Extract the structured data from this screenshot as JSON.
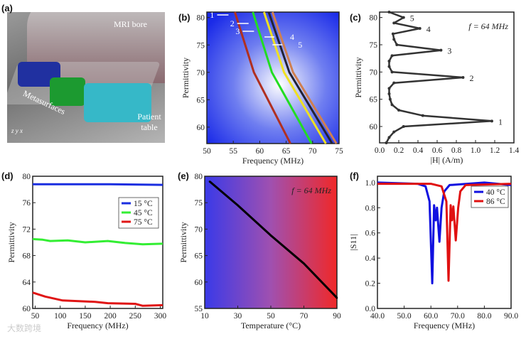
{
  "panels": {
    "a": "(a)",
    "b": "(b)",
    "c": "(c)",
    "d": "(d)",
    "e": "(e)",
    "f": "(f)"
  },
  "scene": {
    "mri_bore": "MRI bore",
    "metasurfaces": "Metasurfaces",
    "patient_table": "Patient table",
    "axes": "z y x"
  },
  "watermark": "大数跨境",
  "chart_data": [
    {
      "id": "b",
      "type": "line",
      "xlabel": "Frequency (MHz)",
      "ylabel": "Permittivity",
      "xlim": [
        50,
        75
      ],
      "ylim": [
        57,
        81
      ],
      "xticks": [
        50,
        55,
        60,
        65,
        70,
        75
      ],
      "yticks": [
        60,
        65,
        70,
        75,
        80
      ],
      "series": [
        {
          "name": "1",
          "color": "#b03020",
          "points": [
            [
              55.3,
              81
            ],
            [
              58.9,
              70
            ],
            [
              65.8,
              57
            ]
          ]
        },
        {
          "name": "2",
          "color": "#22dd22",
          "points": [
            [
              58.7,
              81
            ],
            [
              62.3,
              70
            ],
            [
              69.8,
              57
            ]
          ]
        },
        {
          "name": "3",
          "color": "#f0e020",
          "points": [
            [
              60.8,
              81
            ],
            [
              64.6,
              70
            ],
            [
              72.5,
              57
            ]
          ]
        },
        {
          "name": "4",
          "color": "#222233",
          "points": [
            [
              61.7,
              81
            ],
            [
              65.6,
              70
            ],
            [
              73.7,
              57
            ]
          ]
        },
        {
          "name": "5",
          "color": "#d08050",
          "points": [
            [
              62.4,
              81
            ],
            [
              66.3,
              70
            ],
            [
              74.5,
              57
            ]
          ]
        }
      ]
    },
    {
      "id": "c",
      "type": "line",
      "xlabel": "|H| (A/m)",
      "ylabel": "Permittivity",
      "annotation": "f = 64 MHz",
      "xlim": [
        0,
        1.4
      ],
      "ylim": [
        57,
        81
      ],
      "xticks": [
        0.0,
        0.2,
        0.4,
        0.6,
        0.8,
        1.0,
        1.2,
        1.4
      ],
      "yticks": [
        60,
        65,
        70,
        75,
        80
      ],
      "series": [
        {
          "name": "H",
          "color": "#333333",
          "points": [
            [
              0.07,
              57
            ],
            [
              0.1,
              58
            ],
            [
              0.15,
              59
            ],
            [
              0.25,
              60
            ],
            [
              1.17,
              61
            ],
            [
              0.45,
              62
            ],
            [
              0.2,
              63
            ],
            [
              0.13,
              64
            ],
            [
              0.11,
              65
            ],
            [
              0.1,
              66
            ],
            [
              0.1,
              67
            ],
            [
              0.15,
              68
            ],
            [
              0.87,
              69
            ],
            [
              0.13,
              70
            ],
            [
              0.1,
              71
            ],
            [
              0.1,
              72
            ],
            [
              0.13,
              73
            ],
            [
              0.64,
              74
            ],
            [
              0.18,
              75
            ],
            [
              0.15,
              76
            ],
            [
              0.14,
              77
            ],
            [
              0.42,
              78
            ],
            [
              0.15,
              79
            ],
            [
              0.25,
              80
            ],
            [
              0.1,
              81
            ]
          ]
        }
      ],
      "peak_labels": [
        {
          "text": "1",
          "x": 1.17,
          "y": 61
        },
        {
          "text": "2",
          "x": 0.87,
          "y": 69
        },
        {
          "text": "3",
          "x": 0.64,
          "y": 74
        },
        {
          "text": "4",
          "x": 0.42,
          "y": 78
        },
        {
          "text": "5",
          "x": 0.25,
          "y": 80
        }
      ]
    },
    {
      "id": "d",
      "type": "line",
      "xlabel": "Frequency (MHz)",
      "ylabel": "Permittivity",
      "xlim": [
        45,
        305
      ],
      "ylim": [
        60,
        80
      ],
      "xticks": [
        50,
        100,
        150,
        200,
        250,
        300
      ],
      "yticks": [
        60,
        64,
        68,
        72,
        76,
        80
      ],
      "legend": "top-right",
      "series": [
        {
          "name": "15 °C",
          "color": "#1a2ee0",
          "points": [
            [
              45,
              78.8
            ],
            [
              100,
              78.8
            ],
            [
              200,
              78.8
            ],
            [
              305,
              78.7
            ]
          ]
        },
        {
          "name": "45 °C",
          "color": "#33ee33",
          "points": [
            [
              45,
              70.5
            ],
            [
              65,
              70.4
            ],
            [
              80,
              70.2
            ],
            [
              115,
              70.3
            ],
            [
              150,
              70.0
            ],
            [
              195,
              70.2
            ],
            [
              230,
              69.9
            ],
            [
              265,
              69.7
            ],
            [
              305,
              69.8
            ]
          ]
        },
        {
          "name": "75 °C",
          "color": "#e01515",
          "points": [
            [
              45,
              62.4
            ],
            [
              70,
              61.8
            ],
            [
              105,
              61.2
            ],
            [
              170,
              61.0
            ],
            [
              195,
              60.8
            ],
            [
              250,
              60.7
            ],
            [
              265,
              60.4
            ],
            [
              305,
              60.5
            ]
          ]
        }
      ]
    },
    {
      "id": "e",
      "type": "line",
      "xlabel": "Temperature (°C)",
      "ylabel": "Permittivity",
      "annotation": "f = 64 MHz",
      "xlim": [
        10,
        90
      ],
      "ylim": [
        55,
        80
      ],
      "xticks": [
        10,
        30,
        50,
        70,
        90
      ],
      "yticks": [
        55,
        60,
        65,
        70,
        75,
        80
      ],
      "series": [
        {
          "name": "eps",
          "color": "#000000",
          "points": [
            [
              13,
              79
            ],
            [
              30,
              74.5
            ],
            [
              50,
              68.8
            ],
            [
              70,
              63.5
            ],
            [
              90,
              57
            ]
          ]
        }
      ]
    },
    {
      "id": "f",
      "type": "line",
      "xlabel": "Frequency (MHz)",
      "ylabel": "|S11|",
      "xlim": [
        40,
        90
      ],
      "ylim": [
        0,
        1.05
      ],
      "xticks": [
        40,
        50,
        60,
        70,
        80,
        90
      ],
      "yticks": [
        0.0,
        0.2,
        0.4,
        0.6,
        0.8,
        1.0
      ],
      "legend": "top-right",
      "series": [
        {
          "name": "40 °C",
          "color": "#1010e0",
          "points": [
            [
              40,
              1.0
            ],
            [
              55,
              0.99
            ],
            [
              58,
              0.97
            ],
            [
              59.5,
              0.85
            ],
            [
              60.5,
              0.2
            ],
            [
              61.2,
              0.82
            ],
            [
              61.8,
              0.7
            ],
            [
              62.3,
              0.8
            ],
            [
              63.2,
              0.53
            ],
            [
              64,
              0.8
            ],
            [
              65,
              0.93
            ],
            [
              67,
              0.98
            ],
            [
              80,
              1.0
            ],
            [
              90,
              0.98
            ]
          ]
        },
        {
          "name": "86 °C",
          "color": "#e01010",
          "points": [
            [
              40,
              0.99
            ],
            [
              60,
              0.99
            ],
            [
              64,
              0.97
            ],
            [
              65.8,
              0.85
            ],
            [
              66.6,
              0.22
            ],
            [
              67.4,
              0.82
            ],
            [
              67.9,
              0.7
            ],
            [
              68.4,
              0.81
            ],
            [
              69.3,
              0.54
            ],
            [
              70.2,
              0.8
            ],
            [
              71,
              0.93
            ],
            [
              73,
              0.98
            ],
            [
              90,
              0.99
            ]
          ]
        }
      ]
    }
  ]
}
